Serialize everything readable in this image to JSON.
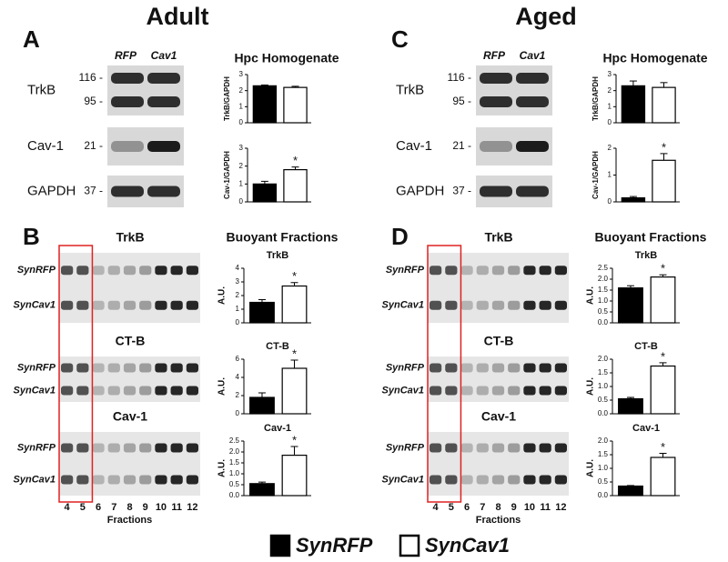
{
  "columns": [
    {
      "title": "Adult",
      "homogenate": {
        "letter": "A",
        "lanes": [
          "RFP",
          "Cav1"
        ],
        "blots": [
          {
            "label": "TrkB",
            "markers": [
              "116 -",
              "95 -"
            ]
          },
          {
            "label": "Cav-1",
            "markers": [
              "21 -"
            ]
          },
          {
            "label": "GAPDH",
            "markers": [
              "37 -"
            ]
          }
        ],
        "heading": "Hpc Homogenate",
        "charts": [
          {
            "type": "bar",
            "ylabel": "TrkB/GAPDH",
            "values": [
              2.3,
              2.2
            ],
            "errors": [
              0.05,
              0.07
            ],
            "ylim": [
              0,
              3
            ],
            "yticks": [
              0,
              1,
              2,
              3
            ]
          },
          {
            "type": "bar",
            "ylabel": "Cav-1/GAPDH",
            "values": [
              1.0,
              1.8
            ],
            "errors": [
              0.15,
              0.15
            ],
            "ylim": [
              0,
              3
            ],
            "yticks": [
              0,
              1,
              2,
              3
            ],
            "annotation": "*"
          }
        ]
      },
      "buoyant": {
        "letter": "B",
        "heading": "Buoyant Fractions",
        "fractions": [
          4,
          5,
          6,
          7,
          8,
          9,
          10,
          11,
          12
        ],
        "fractions_label": "Fractions",
        "blots": [
          {
            "title": "TrkB",
            "rows": [
              "SynRFP",
              "SynCav1"
            ]
          },
          {
            "title": "CT-B",
            "rows": [
              "SynRFP",
              "SynCav1"
            ]
          },
          {
            "title": "Cav-1",
            "rows": [
              "SynRFP",
              "SynCav1"
            ]
          }
        ],
        "charts": [
          {
            "type": "bar",
            "title": "TrkB",
            "ylabel": "A.U.",
            "values": [
              1.5,
              2.7
            ],
            "errors": [
              0.2,
              0.25
            ],
            "ylim": [
              0,
              4
            ],
            "yticks": [
              0,
              1,
              2,
              3,
              4
            ],
            "annotation": "*"
          },
          {
            "type": "bar",
            "title": "CT-B",
            "ylabel": "A.U.",
            "values": [
              1.8,
              5.0
            ],
            "errors": [
              0.5,
              0.9
            ],
            "ylim": [
              0,
              6
            ],
            "yticks": [
              0,
              2,
              4,
              6
            ],
            "annotation": "*"
          },
          {
            "type": "bar",
            "title": "Cav-1",
            "ylabel": "A.U.",
            "values": [
              0.55,
              1.85
            ],
            "errors": [
              0.07,
              0.4
            ],
            "ylim": [
              0,
              2.5
            ],
            "yticks": [
              {
                "value": 0,
                "label": "0.0"
              },
              0.5,
              {
                "value": 1,
                "label": "1.0"
              },
              1.5,
              {
                "value": 2,
                "label": "2.0"
              },
              2.5
            ],
            "annotation": "*"
          }
        ]
      }
    },
    {
      "title": "Aged",
      "homogenate": {
        "letter": "C",
        "lanes": [
          "RFP",
          "Cav1"
        ],
        "blots": [
          {
            "label": "TrkB",
            "markers": [
              "116 -",
              "95 -"
            ]
          },
          {
            "label": "Cav-1",
            "markers": [
              "21 -"
            ]
          },
          {
            "label": "GAPDH",
            "markers": [
              "37 -"
            ]
          }
        ],
        "heading": "Hpc Homogenate",
        "charts": [
          {
            "type": "bar",
            "ylabel": "TrkB/GAPDH",
            "values": [
              2.3,
              2.2
            ],
            "errors": [
              0.3,
              0.3
            ],
            "ylim": [
              0,
              3
            ],
            "yticks": [
              0,
              1,
              2,
              3
            ]
          },
          {
            "type": "bar",
            "ylabel": "Cav-1/GAPDH",
            "values": [
              0.15,
              1.55
            ],
            "errors": [
              0.05,
              0.25
            ],
            "ylim": [
              0,
              2
            ],
            "yticks": [
              0,
              1,
              2
            ],
            "annotation": "*"
          }
        ]
      },
      "buoyant": {
        "letter": "D",
        "heading": "Buoyant Fractions",
        "fractions": [
          4,
          5,
          6,
          7,
          8,
          9,
          10,
          11,
          12
        ],
        "fractions_label": "Fractions",
        "blots": [
          {
            "title": "TrkB",
            "rows": [
              "SynRFP",
              "SynCav1"
            ]
          },
          {
            "title": "CT-B",
            "rows": [
              "SynRFP",
              "SynCav1"
            ]
          },
          {
            "title": "Cav-1",
            "rows": [
              "SynRFP",
              "SynCav1"
            ]
          }
        ],
        "charts": [
          {
            "type": "bar",
            "title": "TrkB",
            "ylabel": "A.U.",
            "values": [
              1.6,
              2.1
            ],
            "errors": [
              0.1,
              0.1
            ],
            "ylim": [
              0,
              2.5
            ],
            "yticks": [
              {
                "value": 0,
                "label": "0.0"
              },
              0.5,
              {
                "value": 1,
                "label": "1.0"
              },
              1.5,
              {
                "value": 2,
                "label": "2.0"
              },
              2.5
            ],
            "annotation": "*"
          },
          {
            "type": "bar",
            "title": "CT-B",
            "ylabel": "A.U.",
            "values": [
              0.55,
              1.75
            ],
            "errors": [
              0.05,
              0.12
            ],
            "ylim": [
              0,
              2
            ],
            "yticks": [
              {
                "value": 0,
                "label": "0.0"
              },
              0.5,
              {
                "value": 1,
                "label": "1.0"
              },
              1.5,
              {
                "value": 2,
                "label": "2.0"
              }
            ],
            "annotation": "*"
          },
          {
            "type": "bar",
            "title": "Cav-1",
            "ylabel": "A.U.",
            "values": [
              0.35,
              1.4
            ],
            "errors": [
              0.02,
              0.15
            ],
            "ylim": [
              0,
              2
            ],
            "yticks": [
              {
                "value": 0,
                "label": "0.0"
              },
              0.5,
              {
                "value": 1,
                "label": "1.0"
              },
              1.5,
              {
                "value": 2,
                "label": "2.0"
              }
            ],
            "annotation": "*"
          }
        ]
      }
    }
  ],
  "legend": [
    {
      "name": "SynRFP",
      "color": "#000000"
    },
    {
      "name": "SynCav1",
      "color": "#ffffff"
    }
  ]
}
